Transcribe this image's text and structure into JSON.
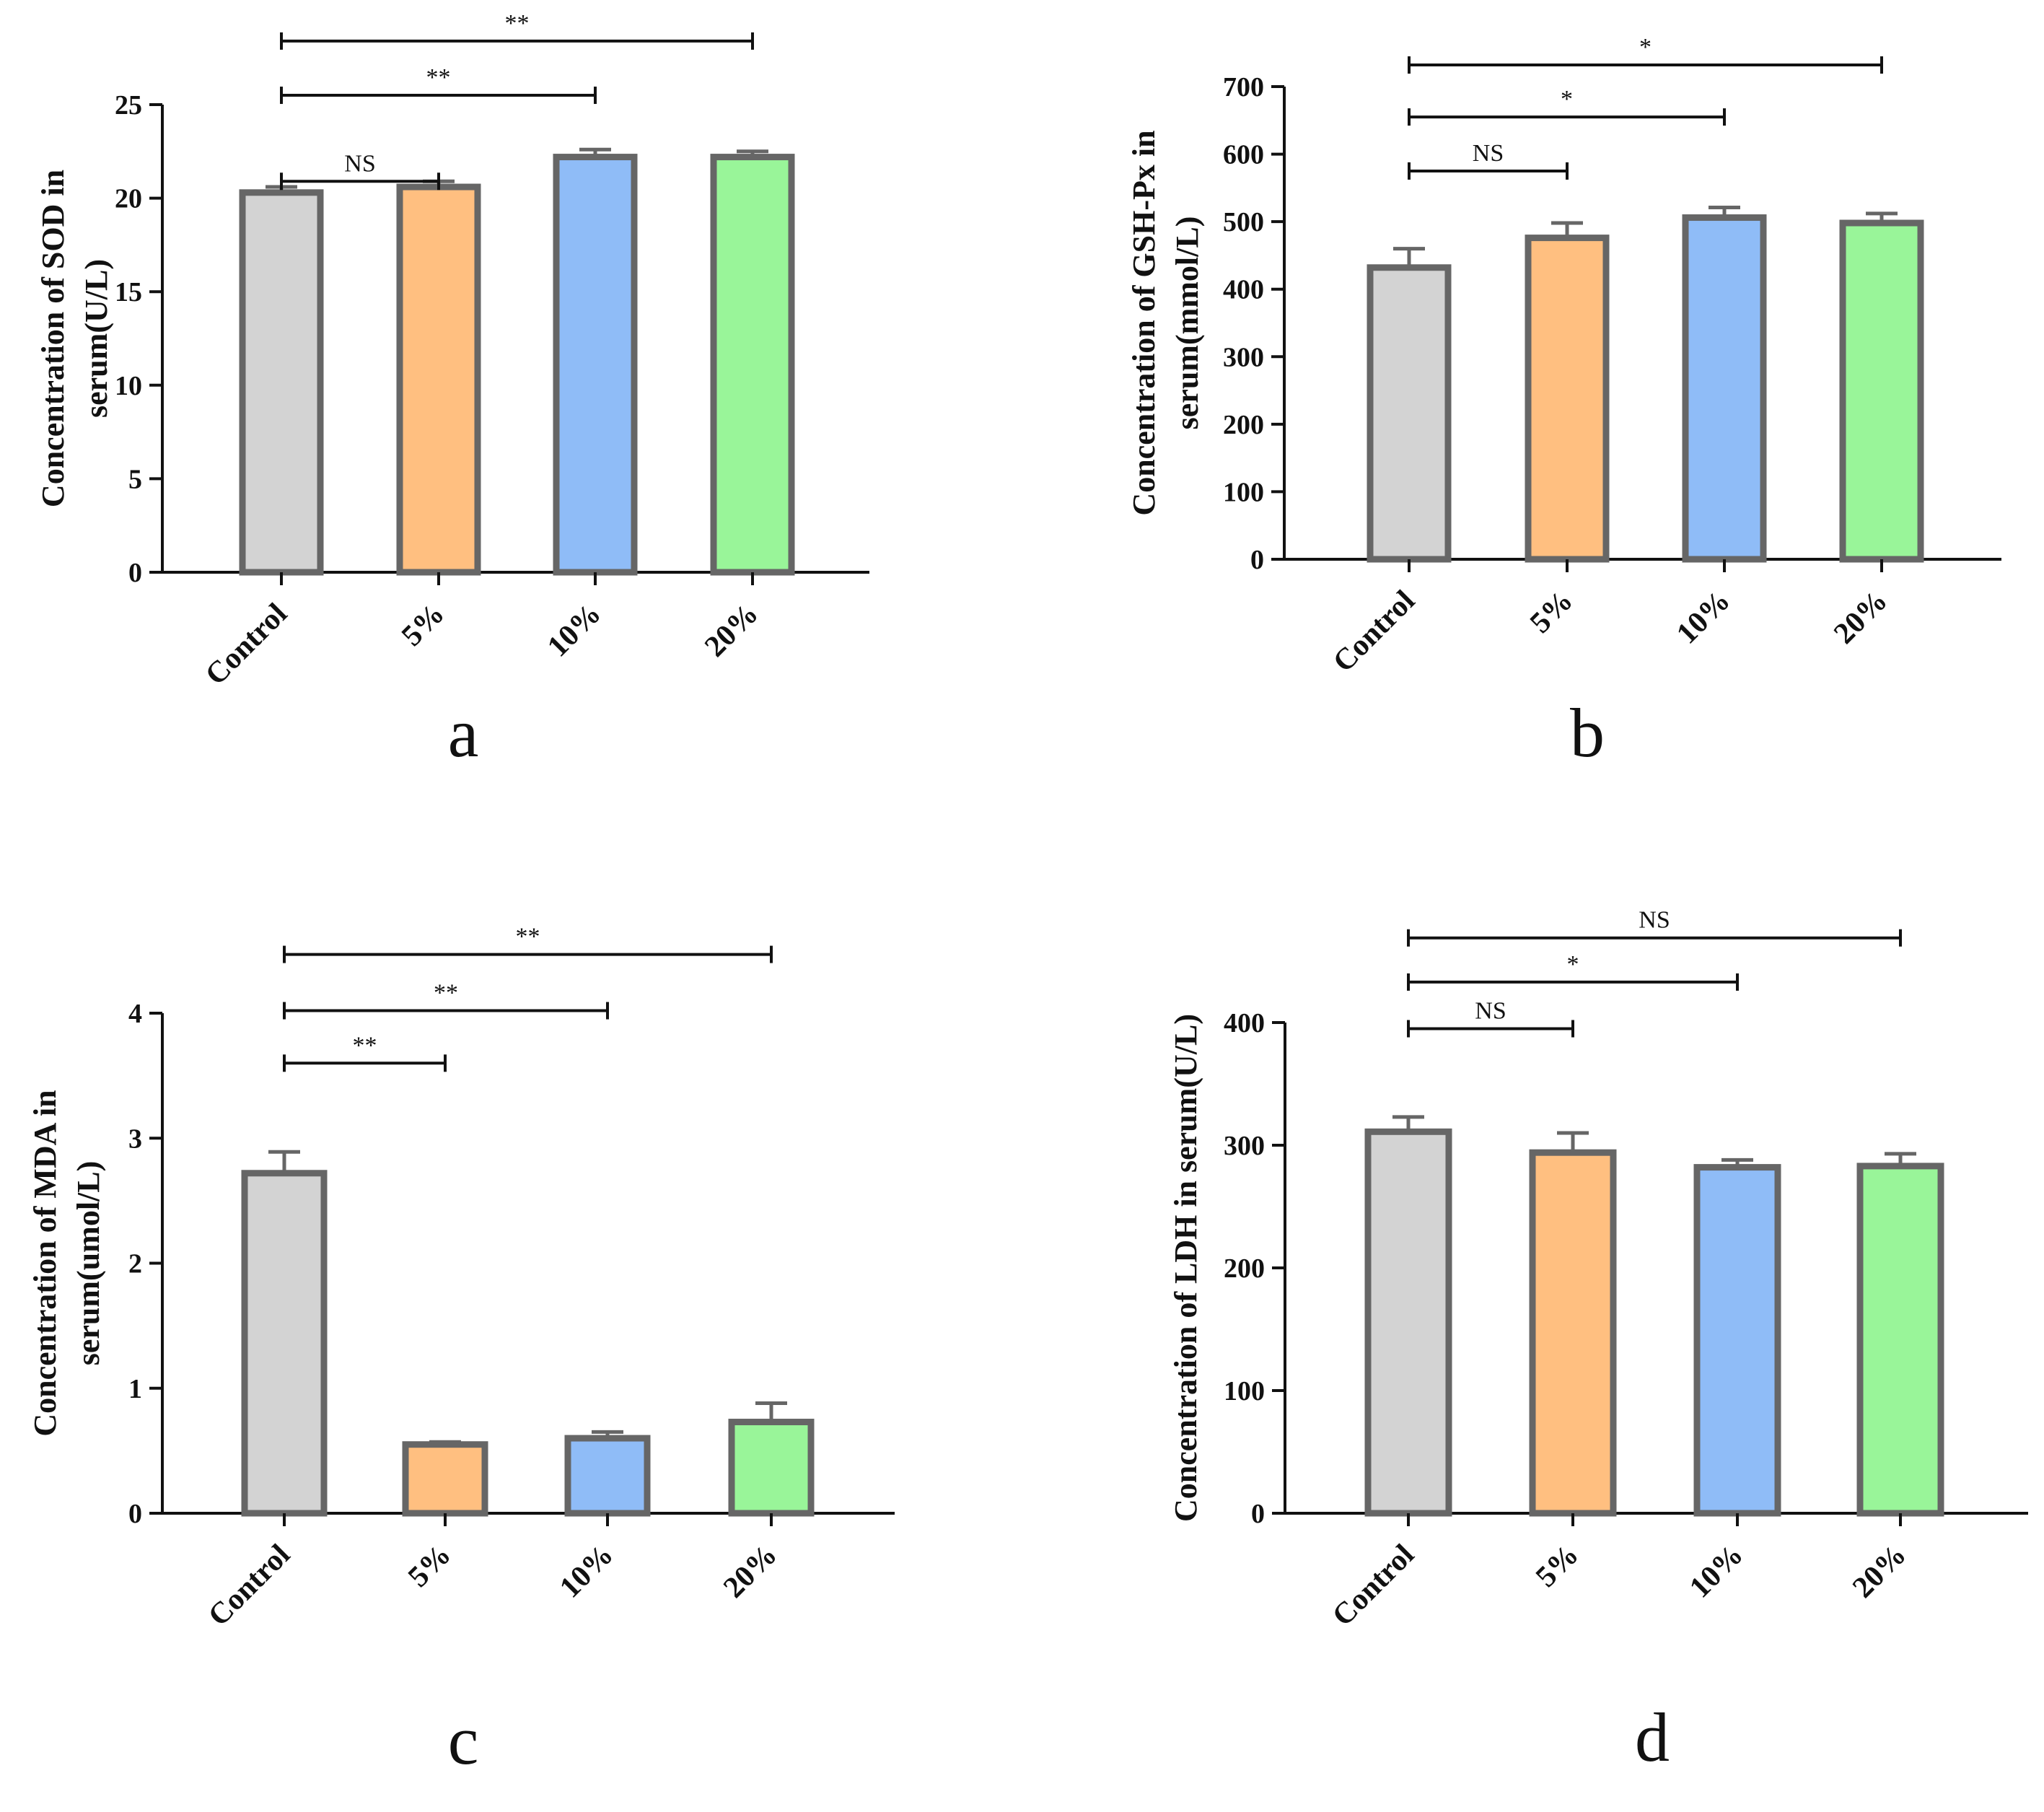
{
  "colors": {
    "axis": "#111111",
    "bar_outline": "#666666",
    "control": "#d3d3d3",
    "pct5": "#ffbf80",
    "pct10": "#8fbcf7",
    "pct20": "#99f599"
  },
  "chart_data": [
    {
      "panel": "a",
      "type": "bar",
      "categories": [
        "Control",
        "5%",
        "10%",
        "20%"
      ],
      "values": [
        20.3,
        20.6,
        22.2,
        22.2
      ],
      "errors": [
        0.3,
        0.3,
        0.4,
        0.3
      ],
      "ylabel_lines": [
        "Concentration of SOD in",
        "serum(U/L)"
      ],
      "ylim": [
        0,
        25
      ],
      "yticks": [
        0,
        5,
        10,
        15,
        20,
        25
      ],
      "comparisons": [
        {
          "from": 0,
          "to": 1,
          "label": "NS",
          "level": 20.9
        },
        {
          "from": 0,
          "to": 2,
          "label": "**",
          "level": 25.5
        },
        {
          "from": 0,
          "to": 3,
          "label": "**",
          "level": 28.4
        }
      ]
    },
    {
      "panel": "b",
      "type": "bar",
      "categories": [
        "Control",
        "5%",
        "10%",
        "20%"
      ],
      "values": [
        432,
        476,
        506,
        498
      ],
      "errors": [
        28,
        22,
        15,
        14
      ],
      "ylabel_lines": [
        "Concentration of GSH-Px in",
        "serum(mmol/L)"
      ],
      "ylim": [
        0,
        700
      ],
      "yticks": [
        0,
        100,
        200,
        300,
        400,
        500,
        600,
        700
      ],
      "comparisons": [
        {
          "from": 0,
          "to": 1,
          "label": "NS",
          "level": 575
        },
        {
          "from": 0,
          "to": 2,
          "label": "*",
          "level": 655
        },
        {
          "from": 0,
          "to": 3,
          "label": "*",
          "level": 732
        }
      ]
    },
    {
      "panel": "c",
      "type": "bar",
      "categories": [
        "Control",
        "5%",
        "10%",
        "20%"
      ],
      "values": [
        2.72,
        0.55,
        0.6,
        0.73
      ],
      "errors": [
        0.17,
        0.02,
        0.05,
        0.15
      ],
      "ylabel_lines": [
        "Concentration of MDA in",
        "serum(umol/L)"
      ],
      "ylim": [
        0,
        4
      ],
      "yticks": [
        0,
        1,
        2,
        3,
        4
      ],
      "comparisons": [
        {
          "from": 0,
          "to": 1,
          "label": "**",
          "level": 3.6
        },
        {
          "from": 0,
          "to": 2,
          "label": "**",
          "level": 4.02
        },
        {
          "from": 0,
          "to": 3,
          "label": "**",
          "level": 4.47
        }
      ]
    },
    {
      "panel": "d",
      "type": "bar",
      "categories": [
        "Control",
        "5%",
        "10%",
        "20%"
      ],
      "values": [
        311,
        294,
        282,
        283
      ],
      "errors": [
        12,
        16,
        6,
        10
      ],
      "ylabel_lines": [
        "Concentration of LDH in serum(U/L)"
      ],
      "ylim": [
        0,
        400
      ],
      "yticks": [
        0,
        100,
        200,
        300,
        400
      ],
      "comparisons": [
        {
          "from": 0,
          "to": 1,
          "label": "NS",
          "level": 395
        },
        {
          "from": 0,
          "to": 2,
          "label": "*",
          "level": 433
        },
        {
          "from": 0,
          "to": 3,
          "label": "NS",
          "level": 469
        }
      ]
    }
  ]
}
